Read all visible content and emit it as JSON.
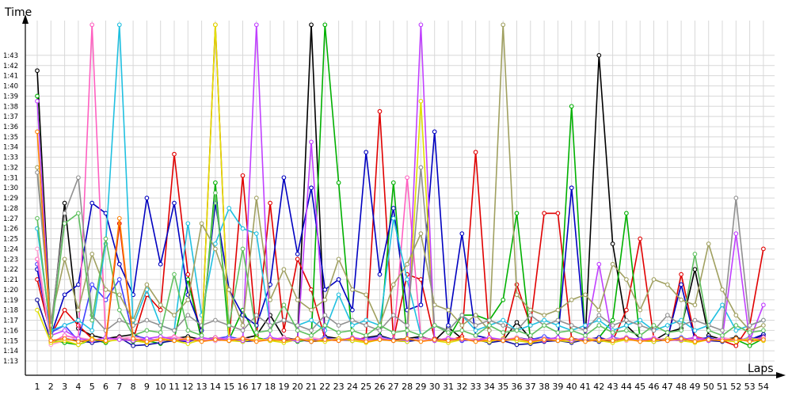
{
  "chart_data": {
    "type": "line",
    "title": "",
    "xlabel": "Laps",
    "ylabel": "Time",
    "grid": true,
    "x": [
      1,
      2,
      3,
      4,
      5,
      6,
      7,
      8,
      9,
      10,
      11,
      12,
      13,
      14,
      15,
      16,
      17,
      18,
      19,
      20,
      21,
      22,
      23,
      24,
      25,
      26,
      27,
      28,
      29,
      30,
      31,
      32,
      33,
      34,
      35,
      36,
      37,
      38,
      39,
      40,
      41,
      42,
      43,
      44,
      45,
      46,
      47,
      48,
      49,
      50,
      51,
      52,
      53,
      54
    ],
    "x_tick_labels": [
      "1",
      "2",
      "3",
      "4",
      "5",
      "6",
      "7",
      "8",
      "9",
      "10",
      "11",
      "12",
      "13",
      "14",
      "15",
      "16",
      "17",
      "18",
      "19",
      "20",
      "21",
      "22",
      "23",
      "24",
      "25",
      "26",
      "27",
      "28",
      "29",
      "30",
      "31",
      "32",
      "33",
      "34",
      "35",
      "36",
      "37",
      "38",
      "39",
      "40",
      "41",
      "42",
      "43",
      "44",
      "45",
      "46",
      "47",
      "48",
      "49",
      "50",
      "51",
      "52",
      "53",
      "54"
    ],
    "y_tick_labels": [
      "1:13",
      "1:14",
      "1:15",
      "1:16",
      "1:17",
      "1:18",
      "1:19",
      "1:20",
      "1:21",
      "1:22",
      "1:23",
      "1:24",
      "1:25",
      "1:26",
      "1:27",
      "1:28",
      "1:29",
      "1:30",
      "1:31",
      "1:32",
      "1:33",
      "1:34",
      "1:35",
      "1:36",
      "1:37",
      "1:38",
      "1:39",
      "1:40",
      "1:41",
      "1:42",
      "1:43"
    ],
    "y_unit": "seconds",
    "ylim": [
      72,
      106
    ],
    "series": [
      {
        "color": "#000000",
        "values": [
          101.5,
          75.8,
          88.5,
          76.2,
          75.5,
          75.2,
          75.4,
          75.6,
          75.1,
          75.0,
          75.2,
          75.4,
          75.1,
          75.3,
          75.0,
          75.2,
          75.5,
          77.5,
          75.3,
          75.1,
          106,
          75.4,
          75.2,
          75.0,
          75.3,
          75.5,
          75.1,
          75.2,
          75.4,
          75.0,
          76.3,
          75.2,
          75.1,
          75.3,
          75.0,
          76.8,
          75.2,
          75.1,
          75.3,
          75.0,
          75.2,
          103,
          84.5,
          76.5,
          75.2,
          75.0,
          75.8,
          76.2,
          82.0,
          75.5,
          75.1,
          75.3,
          75.0,
          75.6
        ]
      },
      {
        "color": "#e00000",
        "values": [
          81.0,
          75.5,
          78.0,
          76.5,
          75.2,
          74.8,
          86.5,
          75.1,
          79.5,
          78.0,
          93.3,
          81.5,
          75.2,
          106,
          75.0,
          91.2,
          75.5,
          88.5,
          76.0,
          83.0,
          80.0,
          75.2,
          75.1,
          75.0,
          75.3,
          97.5,
          75.1,
          81.5,
          81.0,
          75.2,
          75.0,
          75.4,
          93.5,
          75.1,
          75.0,
          80.5,
          76.5,
          87.5,
          87.5,
          75.2,
          75.1,
          75.3,
          75.0,
          78.0,
          85.0,
          75.2,
          75.0,
          81.5,
          75.4,
          75.1,
          75.0,
          74.5,
          76.5,
          84.0
        ]
      },
      {
        "color": "#00b000",
        "values": [
          99.0,
          75.0,
          74.8,
          74.6,
          75.1,
          74.8,
          75.3,
          74.9,
          75.0,
          74.7,
          75.2,
          81.0,
          75.0,
          90.5,
          75.1,
          78.0,
          75.3,
          75.0,
          75.2,
          74.9,
          75.1,
          106,
          90.5,
          75.0,
          75.2,
          75.1,
          90.5,
          75.0,
          75.3,
          75.1,
          75.2,
          77.5,
          77.5,
          77.0,
          79.0,
          87.5,
          75.0,
          75.2,
          75.1,
          98.0,
          75.0,
          75.3,
          77.0,
          87.5,
          75.1,
          75.0,
          75.2,
          75.1,
          75.3,
          75.0,
          75.2,
          75.1,
          74.5,
          75.2
        ]
      },
      {
        "color": "#0000c0",
        "values": [
          82.0,
          75.5,
          79.5,
          80.5,
          88.5,
          87.5,
          82.5,
          79.5,
          89.0,
          82.5,
          88.5,
          79.5,
          76.0,
          88.5,
          80.0,
          77.5,
          76.5,
          80.5,
          91.0,
          83.5,
          90.0,
          80.0,
          81.0,
          78.0,
          93.5,
          81.5,
          88.0,
          78.0,
          78.5,
          95.5,
          76.5,
          85.5,
          75.5,
          75.2,
          75.0,
          75.3,
          75.1,
          75.0,
          75.2,
          90.0,
          75.1,
          75.3,
          75.0,
          75.2,
          75.1,
          75.0,
          75.2,
          80.5,
          75.1,
          75.3,
          75.0,
          75.2,
          75.1,
          75.6
        ]
      },
      {
        "color": "#1010a0",
        "values": [
          79.0,
          75.0,
          75.2,
          75.0,
          74.8,
          75.0,
          75.3,
          74.5,
          74.6,
          74.8,
          75.0,
          74.9,
          75.2,
          75.0,
          75.1,
          74.9,
          75.0,
          75.2,
          75.0,
          75.1,
          74.9,
          75.0,
          75.2,
          75.0,
          75.1,
          75.3,
          75.0,
          74.9,
          75.1,
          75.0,
          75.2,
          75.0,
          75.1,
          74.8,
          75.0,
          74.6,
          74.7,
          74.9,
          75.0,
          74.8,
          75.1,
          74.9,
          75.0,
          75.2,
          75.0,
          74.9,
          75.1,
          75.0,
          75.2,
          75.0,
          74.9,
          75.1,
          75.0,
          75.4
        ]
      },
      {
        "color": "#4040ff",
        "values": [
          82.5,
          75.8,
          76.5,
          75.0,
          80.5,
          79.0,
          81.0,
          75.5,
          75.2,
          75.0,
          75.3,
          75.1,
          75.0,
          75.2,
          75.4,
          75.1,
          75.0,
          75.3,
          75.1,
          75.2,
          75.0,
          75.3,
          75.1,
          75.0,
          75.2,
          75.4,
          75.1,
          75.0,
          75.3,
          75.1,
          75.2,
          75.0,
          75.1,
          75.3,
          75.0,
          75.2,
          75.1,
          75.4,
          75.0,
          75.2,
          75.1,
          75.0,
          75.3,
          75.1,
          75.2,
          75.0,
          75.1,
          75.3,
          75.0,
          75.2,
          75.1,
          75.0,
          75.3,
          75.1
        ]
      },
      {
        "color": "#ff60c0",
        "values": [
          83.0,
          74.8,
          75.5,
          75.2,
          106,
          75.0,
          75.3,
          75.1,
          75.0,
          75.2,
          75.4,
          75.1,
          75.0,
          75.3,
          75.1,
          75.2,
          75.0,
          75.1,
          75.3,
          75.0,
          75.2,
          75.1,
          75.0,
          75.3,
          75.1,
          75.2,
          75.0,
          91.0,
          75.3,
          75.1,
          75.0,
          75.2,
          75.1,
          75.3,
          75.0,
          75.2,
          75.1,
          75.0,
          75.3,
          75.1,
          75.2,
          75.0,
          75.1,
          75.3,
          75.0,
          75.2,
          75.1,
          75.0,
          75.3,
          75.1,
          75.2,
          75.0,
          75.1,
          75.3
        ]
      },
      {
        "color": "#ff9fd0",
        "values": [
          84.0,
          74.6,
          75.0,
          75.3,
          75.1,
          75.0,
          75.2,
          75.4,
          75.1,
          75.0,
          75.3,
          75.1,
          75.2,
          75.0,
          75.1,
          75.3,
          75.0,
          75.2,
          75.1,
          75.0,
          75.3,
          75.1,
          75.2,
          75.0,
          75.1,
          75.3,
          75.0,
          75.2,
          75.1,
          75.0,
          75.3,
          75.1,
          75.2,
          75.0,
          75.1,
          75.3,
          75.0,
          75.2,
          75.1,
          75.0,
          75.3,
          75.1,
          75.2,
          75.0,
          75.1,
          75.3,
          75.0,
          75.2,
          75.1,
          75.0,
          75.3,
          75.1,
          75.2,
          75.0
        ]
      },
      {
        "color": "#20c0e0",
        "values": [
          86.0,
          76.0,
          76.5,
          77.0,
          76.0,
          84.5,
          106,
          76.5,
          80.0,
          76.5,
          76.0,
          86.5,
          77.5,
          84.5,
          88.0,
          86.0,
          85.5,
          76.5,
          77.0,
          76.5,
          77.0,
          76.0,
          79.5,
          76.5,
          77.0,
          76.5,
          87.0,
          81.0,
          75.5,
          76.5,
          76.0,
          77.5,
          76.0,
          76.5,
          77.0,
          76.0,
          76.5,
          77.0,
          76.5,
          76.0,
          76.5,
          77.0,
          76.0,
          76.5,
          77.0,
          76.0,
          76.5,
          77.0,
          76.0,
          76.5,
          78.5,
          76.0,
          76.5,
          77.0
        ]
      },
      {
        "color": "#e0e000",
        "values": [
          78.0,
          74.8,
          75.0,
          74.6,
          75.2,
          74.9,
          75.1,
          75.0,
          74.8,
          75.2,
          75.0,
          74.7,
          75.1,
          106,
          75.0,
          74.9,
          75.2,
          75.0,
          74.8,
          75.1,
          75.0,
          74.9,
          75.2,
          75.0,
          74.8,
          75.1,
          75.0,
          74.9,
          98.5,
          75.0,
          74.8,
          75.1,
          75.0,
          74.9,
          75.2,
          75.0,
          74.8,
          75.1,
          75.0,
          74.9,
          75.2,
          75.0,
          74.8,
          75.1,
          75.0,
          74.9,
          75.2,
          75.0,
          74.8,
          75.1,
          75.0,
          74.9,
          75.2,
          75.0
        ]
      },
      {
        "color": "#c040ff",
        "values": [
          98.5,
          75.5,
          76.0,
          75.2,
          75.0,
          75.3,
          75.1,
          75.0,
          75.2,
          75.4,
          75.1,
          75.0,
          75.3,
          75.1,
          75.2,
          75.0,
          106,
          75.3,
          75.1,
          75.0,
          94.5,
          75.1,
          75.0,
          75.3,
          75.1,
          75.2,
          75.0,
          75.1,
          106,
          75.0,
          75.2,
          75.1,
          75.0,
          75.3,
          75.1,
          75.2,
          75.0,
          75.1,
          75.3,
          75.0,
          75.2,
          82.5,
          75.0,
          75.3,
          75.1,
          75.2,
          75.0,
          75.1,
          75.3,
          75.0,
          75.2,
          85.5,
          75.0,
          78.5
        ]
      },
      {
        "color": "#a0a060",
        "values": [
          92.0,
          77.0,
          83.0,
          78.0,
          83.5,
          80.0,
          79.5,
          77.0,
          80.5,
          78.5,
          77.5,
          79.0,
          86.5,
          84.0,
          80.0,
          76.5,
          89.0,
          79.0,
          82.0,
          79.0,
          78.0,
          79.0,
          83.0,
          80.0,
          79.5,
          76.5,
          80.5,
          82.5,
          85.5,
          78.5,
          78.0,
          76.5,
          77.5,
          76.0,
          106,
          79.5,
          78.0,
          77.5,
          78.0,
          79.0,
          79.5,
          78.0,
          82.5,
          81.0,
          78.0,
          81.0,
          80.5,
          79.0,
          78.5,
          84.5,
          80.0,
          77.5,
          76.0,
          76.5
        ]
      },
      {
        "color": "#909090",
        "values": [
          91.5,
          76.5,
          87.5,
          91.0,
          77.5,
          76.0,
          77.0,
          76.5,
          77.0,
          76.5,
          76.0,
          77.5,
          76.5,
          77.0,
          76.5,
          76.0,
          77.5,
          76.5,
          77.0,
          76.5,
          76.0,
          77.5,
          76.5,
          77.0,
          76.5,
          76.0,
          77.5,
          76.5,
          92.0,
          76.5,
          76.0,
          77.5,
          76.5,
          77.0,
          76.5,
          76.0,
          77.5,
          76.5,
          77.0,
          76.5,
          76.0,
          77.5,
          76.5,
          77.0,
          76.5,
          76.0,
          77.5,
          76.5,
          77.0,
          76.5,
          76.0,
          89.0,
          76.5,
          77.0
        ]
      },
      {
        "color": "#60c060",
        "values": [
          87.0,
          75.5,
          86.5,
          87.5,
          77.0,
          85.0,
          78.0,
          75.5,
          76.0,
          75.8,
          81.5,
          76.0,
          75.5,
          89.5,
          76.5,
          84.0,
          75.8,
          76.0,
          78.5,
          76.0,
          75.5,
          76.5,
          75.8,
          76.0,
          75.5,
          76.5,
          75.8,
          76.0,
          75.5,
          76.5,
          75.8,
          76.0,
          75.5,
          76.5,
          75.8,
          76.0,
          75.5,
          76.5,
          75.8,
          76.0,
          75.5,
          76.5,
          75.8,
          76.0,
          75.5,
          76.5,
          75.8,
          76.0,
          83.5,
          76.0,
          75.5,
          76.5,
          75.8,
          76.0
        ]
      },
      {
        "color": "#ff8000",
        "values": [
          95.5,
          75.0,
          75.2,
          74.9,
          75.1,
          75.0,
          87.0,
          75.2,
          74.9,
          75.1,
          75.0,
          75.2,
          74.9,
          75.1,
          75.0,
          75.2,
          74.9,
          75.1,
          75.0,
          75.2,
          74.9,
          75.1,
          75.0,
          75.2,
          74.9,
          75.1,
          75.0,
          75.2,
          74.9,
          75.1,
          75.0,
          75.2,
          74.9,
          75.1,
          75.0,
          75.2,
          74.9,
          75.1,
          75.0,
          75.2,
          74.9,
          75.1,
          75.0,
          75.2,
          74.9,
          75.1,
          75.0,
          75.2,
          74.9,
          75.1,
          75.0,
          75.2,
          74.9,
          75.1
        ]
      }
    ]
  }
}
